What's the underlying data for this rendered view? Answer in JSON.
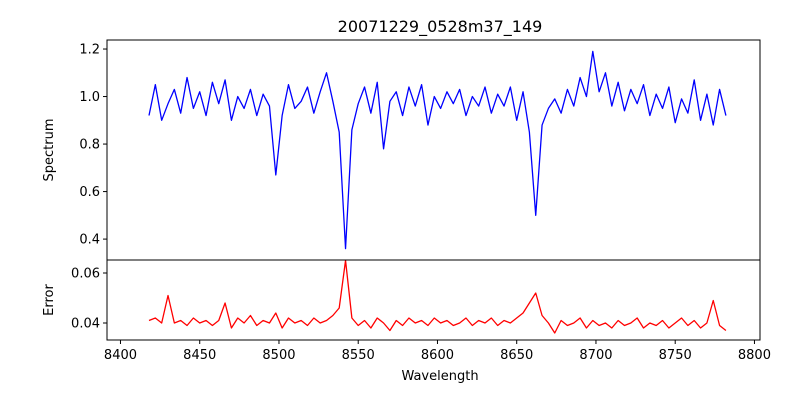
{
  "chart_data": {
    "type": "line",
    "title": "20071229_0528m37_149",
    "xlabel": "Wavelength",
    "xlim": [
      8391.5,
      8803.5
    ],
    "xticks": [
      8400,
      8450,
      8500,
      8550,
      8600,
      8650,
      8700,
      8750,
      8800
    ],
    "x_start": 8418,
    "x_step": 4,
    "panels": [
      {
        "name": "spectrum",
        "ylabel": "Spectrum",
        "ylim": [
          0.312,
          1.238
        ],
        "yticks": [
          0.4,
          0.6,
          0.8,
          1.0,
          1.2
        ],
        "ytick_labels": [
          "0.4",
          "0.6",
          "0.8",
          "1.0",
          "1.2"
        ],
        "color": "#0000ff",
        "values": [
          0.92,
          1.05,
          0.9,
          0.97,
          1.03,
          0.93,
          1.08,
          0.95,
          1.02,
          0.92,
          1.06,
          0.97,
          1.07,
          0.9,
          1.0,
          0.95,
          1.03,
          0.92,
          1.01,
          0.96,
          0.67,
          0.92,
          1.05,
          0.95,
          0.98,
          1.04,
          0.93,
          1.02,
          1.1,
          0.98,
          0.85,
          0.36,
          0.86,
          0.97,
          1.04,
          0.93,
          1.06,
          0.78,
          0.98,
          1.02,
          0.92,
          1.04,
          0.96,
          1.05,
          0.88,
          1.0,
          0.95,
          1.02,
          0.97,
          1.03,
          0.92,
          1.0,
          0.96,
          1.04,
          0.93,
          1.01,
          0.96,
          1.04,
          0.9,
          1.02,
          0.85,
          0.5,
          0.88,
          0.95,
          0.99,
          0.93,
          1.03,
          0.96,
          1.08,
          1.0,
          1.19,
          1.02,
          1.1,
          0.96,
          1.06,
          0.94,
          1.03,
          0.97,
          1.05,
          0.92,
          1.01,
          0.95,
          1.04,
          0.89,
          0.99,
          0.93,
          1.07,
          0.9,
          1.01,
          0.88,
          1.03,
          0.92
        ]
      },
      {
        "name": "error",
        "ylabel": "Error",
        "ylim": [
          0.0332,
          0.0652
        ],
        "yticks": [
          0.04,
          0.06
        ],
        "ytick_labels": [
          "0.04",
          "0.06"
        ],
        "color": "#ff0000",
        "values": [
          0.041,
          0.042,
          0.04,
          0.051,
          0.04,
          0.041,
          0.039,
          0.042,
          0.04,
          0.041,
          0.039,
          0.041,
          0.048,
          0.038,
          0.042,
          0.04,
          0.043,
          0.039,
          0.041,
          0.04,
          0.044,
          0.038,
          0.042,
          0.04,
          0.041,
          0.039,
          0.042,
          0.04,
          0.041,
          0.043,
          0.046,
          0.065,
          0.042,
          0.039,
          0.041,
          0.038,
          0.042,
          0.04,
          0.037,
          0.041,
          0.039,
          0.042,
          0.04,
          0.041,
          0.039,
          0.042,
          0.04,
          0.041,
          0.039,
          0.04,
          0.042,
          0.039,
          0.041,
          0.04,
          0.042,
          0.039,
          0.041,
          0.04,
          0.042,
          0.044,
          0.048,
          0.052,
          0.043,
          0.04,
          0.036,
          0.041,
          0.039,
          0.04,
          0.042,
          0.038,
          0.041,
          0.039,
          0.04,
          0.038,
          0.041,
          0.039,
          0.04,
          0.042,
          0.038,
          0.04,
          0.039,
          0.041,
          0.038,
          0.04,
          0.042,
          0.039,
          0.041,
          0.038,
          0.04,
          0.049,
          0.039,
          0.037
        ]
      }
    ]
  }
}
